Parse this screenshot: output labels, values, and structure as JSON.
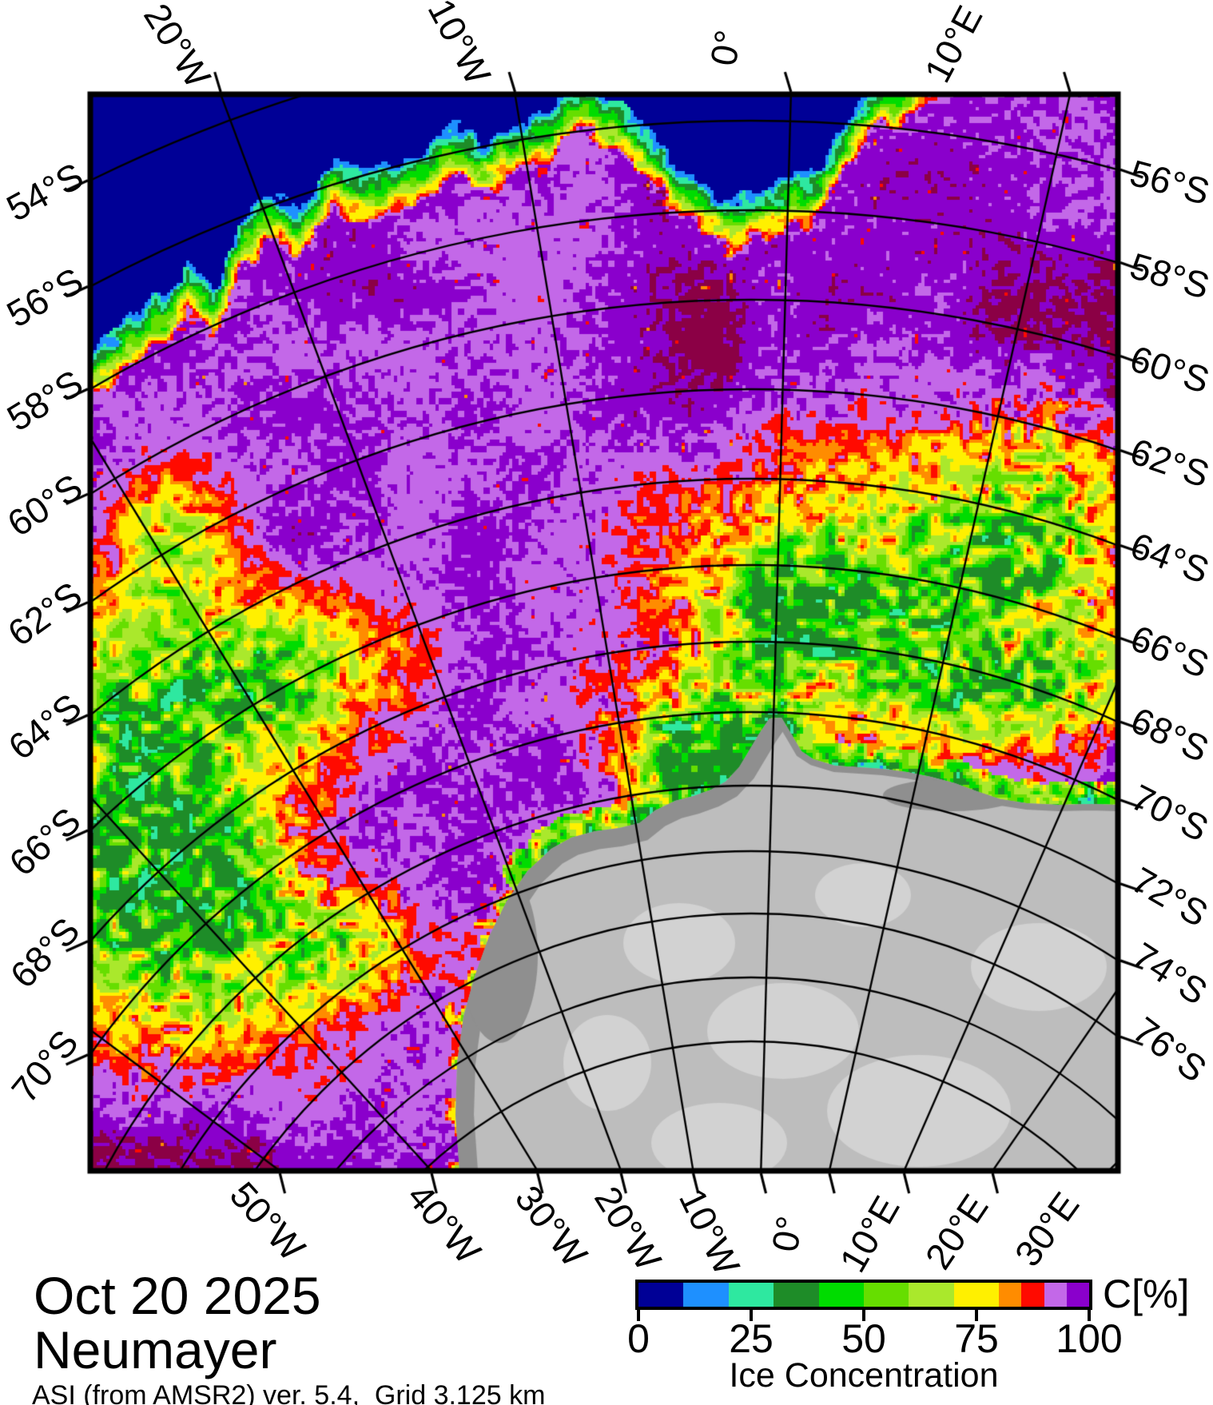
{
  "title_block": {
    "date": "Oct 20 2025",
    "station": "Neumayer",
    "source": "ASI (from AMSR2) ver. 5.4,  Grid 3.125 km"
  },
  "axes": {
    "top": [
      "20°W",
      "10°W",
      "0°",
      "10°E"
    ],
    "bottom": [
      "50°W",
      "40°W",
      "30°W",
      "20°W",
      "10°W",
      "0°",
      "10°E",
      "20°E",
      "30°E"
    ],
    "left": [
      "54°S",
      "56°S",
      "58°S",
      "60°S",
      "62°S",
      "64°S",
      "66°S",
      "68°S",
      "70°S"
    ],
    "right": [
      "56°S",
      "58°S",
      "60°S",
      "62°S",
      "64°S",
      "66°S",
      "68°S",
      "70°S",
      "72°S",
      "74°S",
      "76°S"
    ]
  },
  "colorbar": {
    "unit": "C[%]",
    "axis_label": "Ice Concentration",
    "tick_labels": [
      "0",
      "25",
      "50",
      "75",
      "100"
    ],
    "tick_values": [
      0,
      25,
      50,
      75,
      100
    ],
    "bin_edges": [
      0,
      10,
      20,
      30,
      40,
      50,
      60,
      70,
      80,
      85,
      90,
      95,
      100
    ],
    "colors": [
      "#000096",
      "#1e90ff",
      "#2ee8a0",
      "#1e8c28",
      "#00dc00",
      "#66de00",
      "#aae82c",
      "#fff000",
      "#ff8c00",
      "#ff0a00",
      "#c368e8",
      "#8a00cc"
    ]
  },
  "map": {
    "ocean_color": "#0000a0",
    "ice100_color": "#8b0045",
    "land_color": "#bdbdbd",
    "land_shade_color": "#8f8f8f",
    "land_light_color": "#d2d2d2",
    "graticule_color": "#000000"
  }
}
